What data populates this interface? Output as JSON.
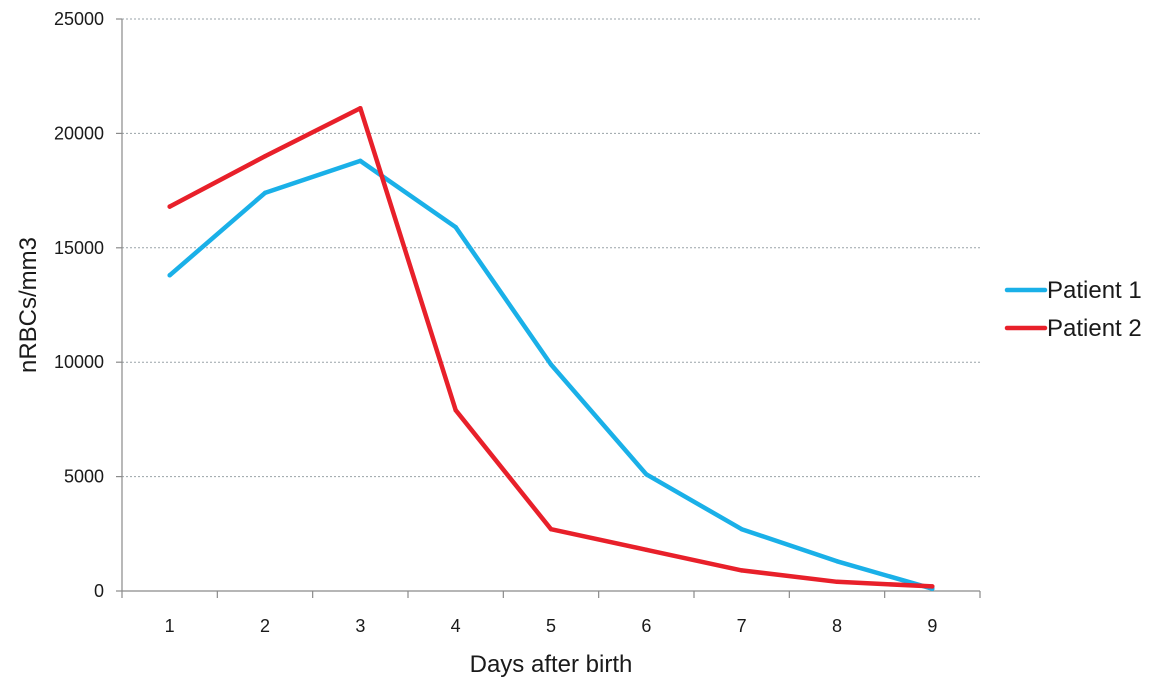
{
  "chart_data": {
    "type": "line",
    "title": "",
    "xlabel": "Days after birth",
    "ylabel": "nRBCs/mm3",
    "x": [
      1,
      2,
      3,
      4,
      5,
      6,
      7,
      8,
      9
    ],
    "x_tick_labels": [
      "1",
      "2",
      "3",
      "4",
      "5",
      "6",
      "7",
      "8",
      "9"
    ],
    "y_tick_labels": [
      "0",
      "5000",
      "10000",
      "15000",
      "20000",
      "25000"
    ],
    "ylim": [
      0,
      25000
    ],
    "grid": "horizontal dashed",
    "legend_position": "right",
    "series": [
      {
        "name": "Patient 1",
        "color": "#1ab0e8",
        "values": [
          13800,
          17400,
          18800,
          15900,
          9900,
          5100,
          2700,
          1300,
          100
        ]
      },
      {
        "name": "Patient 2",
        "color": "#e8202a",
        "values": [
          16800,
          19000,
          21100,
          7900,
          2700,
          1800,
          900,
          400,
          200
        ]
      }
    ]
  }
}
